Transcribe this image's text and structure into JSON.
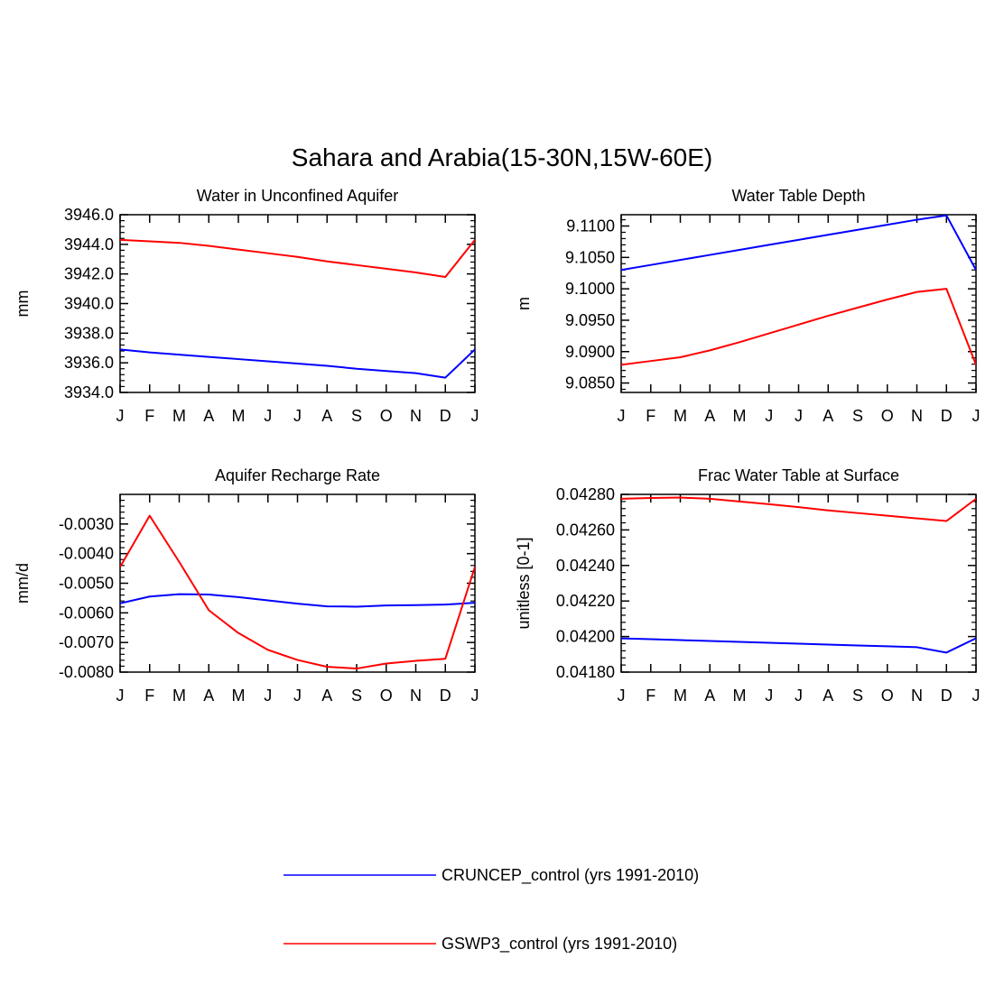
{
  "figure": {
    "title": "Sahara and Arabia(15-30N,15W-60E)"
  },
  "legend": [
    {
      "label": "CRUNCEP_control (yrs 1991-2010)",
      "color": "#0000ff"
    },
    {
      "label": "GSWP3_control (yrs 1991-2010)",
      "color": "#ff0000"
    }
  ],
  "chart_data": [
    {
      "type": "line",
      "title": "Water in Unconfined Aquifer",
      "xlabel": "",
      "ylabel": "mm",
      "categories": [
        "J",
        "F",
        "M",
        "A",
        "M",
        "J",
        "J",
        "A",
        "S",
        "O",
        "N",
        "D",
        "J"
      ],
      "ylim": [
        3934.0,
        3946.0
      ],
      "yticks": [
        3934.0,
        3936.0,
        3938.0,
        3940.0,
        3942.0,
        3944.0,
        3946.0
      ],
      "ytick_labels": [
        "3934.0",
        "3936.0",
        "3938.0",
        "3940.0",
        "3942.0",
        "3944.0",
        "3946.0"
      ],
      "series": [
        {
          "name": "CRUNCEP_control (yrs 1991-2010)",
          "color": "#0000ff",
          "values": [
            3936.9,
            3936.7,
            3936.55,
            3936.4,
            3936.25,
            3936.1,
            3935.95,
            3935.8,
            3935.6,
            3935.45,
            3935.3,
            3935.0,
            3936.9
          ]
        },
        {
          "name": "GSWP3_control (yrs 1991-2010)",
          "color": "#ff0000",
          "values": [
            3944.3,
            3944.2,
            3944.1,
            3943.9,
            3943.65,
            3943.4,
            3943.15,
            3942.85,
            3942.6,
            3942.35,
            3942.1,
            3941.8,
            3944.3
          ]
        }
      ]
    },
    {
      "type": "line",
      "title": "Water Table Depth",
      "xlabel": "",
      "ylabel": "m",
      "categories": [
        "J",
        "F",
        "M",
        "A",
        "M",
        "J",
        "J",
        "A",
        "S",
        "O",
        "N",
        "D",
        "J"
      ],
      "ylim": [
        9.0835,
        9.1118
      ],
      "yticks": [
        9.085,
        9.09,
        9.095,
        9.1,
        9.105,
        9.11
      ],
      "ytick_labels": [
        "9.0850",
        "9.0900",
        "9.0950",
        "9.1000",
        "9.1050",
        "9.1100"
      ],
      "series": [
        {
          "name": "CRUNCEP_control (yrs 1991-2010)",
          "color": "#0000ff",
          "values": [
            9.103,
            9.1038,
            9.1046,
            9.1054,
            9.1062,
            9.107,
            9.1078,
            9.1086,
            9.1094,
            9.1102,
            9.111,
            9.1117,
            9.103
          ]
        },
        {
          "name": "GSWP3_control (yrs 1991-2010)",
          "color": "#ff0000",
          "values": [
            9.0879,
            9.0885,
            9.0891,
            9.0902,
            9.0915,
            9.0929,
            9.0943,
            9.0957,
            9.097,
            9.0983,
            9.0995,
            9.1,
            9.0879
          ]
        }
      ]
    },
    {
      "type": "line",
      "title": "Aquifer Recharge Rate",
      "xlabel": "",
      "ylabel": "mm/d",
      "categories": [
        "J",
        "F",
        "M",
        "A",
        "M",
        "J",
        "J",
        "A",
        "S",
        "O",
        "N",
        "D",
        "J"
      ],
      "ylim": [
        -0.008,
        -0.002
      ],
      "yticks": [
        -0.008,
        -0.007,
        -0.006,
        -0.005,
        -0.004,
        -0.003
      ],
      "ytick_labels": [
        "-0.0080",
        "-0.0070",
        "-0.0060",
        "-0.0050",
        "-0.0040",
        "-0.0030"
      ],
      "series": [
        {
          "name": "CRUNCEP_control (yrs 1991-2010)",
          "color": "#0000ff",
          "values": [
            -0.00568,
            -0.00545,
            -0.00537,
            -0.00538,
            -0.00547,
            -0.00558,
            -0.00569,
            -0.00578,
            -0.00579,
            -0.00575,
            -0.00574,
            -0.00572,
            -0.00566
          ]
        },
        {
          "name": "GSWP3_control (yrs 1991-2010)",
          "color": "#ff0000",
          "values": [
            -0.00445,
            -0.00272,
            -0.00428,
            -0.00591,
            -0.00668,
            -0.00725,
            -0.00759,
            -0.00782,
            -0.00788,
            -0.00771,
            -0.00762,
            -0.00755,
            -0.00445
          ]
        }
      ]
    },
    {
      "type": "line",
      "title": "Frac Water Table at Surface",
      "xlabel": "",
      "ylabel": "unitless [0-1]",
      "categories": [
        "J",
        "F",
        "M",
        "A",
        "M",
        "J",
        "J",
        "A",
        "S",
        "O",
        "N",
        "D",
        "J"
      ],
      "ylim": [
        0.0418,
        0.0428
      ],
      "yticks": [
        0.0418,
        0.042,
        0.0422,
        0.0424,
        0.0426,
        0.0428
      ],
      "ytick_labels": [
        "0.04180",
        "0.04200",
        "0.04220",
        "0.04240",
        "0.04260",
        "0.04280"
      ],
      "series": [
        {
          "name": "CRUNCEP_control (yrs 1991-2010)",
          "color": "#0000ff",
          "values": [
            0.04199,
            0.041985,
            0.04198,
            0.041975,
            0.04197,
            0.041965,
            0.04196,
            0.041955,
            0.04195,
            0.041945,
            0.04194,
            0.04191,
            0.04199
          ]
        },
        {
          "name": "GSWP3_control (yrs 1991-2010)",
          "color": "#ff0000",
          "values": [
            0.042775,
            0.04278,
            0.042782,
            0.042775,
            0.04276,
            0.042745,
            0.042728,
            0.04271,
            0.042695,
            0.04268,
            0.042665,
            0.04265,
            0.042775
          ]
        }
      ]
    }
  ]
}
